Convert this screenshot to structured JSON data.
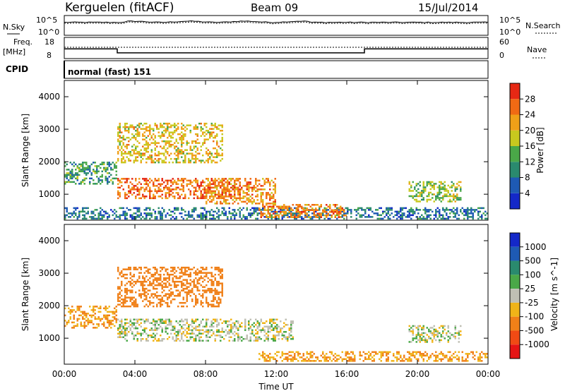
{
  "header": {
    "station": "Kerguelen (fitACF)",
    "beam": "Beam 09",
    "date": "15/Jul/2014"
  },
  "noise_panel": {
    "left_label": "N.Sky",
    "right_label": "N.Search",
    "left_ticks": [
      "10^5",
      "10^0"
    ],
    "right_ticks": [
      "10^5",
      "10^0"
    ]
  },
  "freq_panel": {
    "left_label_1": "Freq.",
    "left_label_2": "[MHz]",
    "right_label": "Nave",
    "left_ticks": [
      "18",
      "8"
    ],
    "right_ticks": [
      "60",
      "0"
    ],
    "freq_segments": [
      {
        "start_h": 0.0,
        "end_h": 3.0,
        "value": 12.6
      },
      {
        "start_h": 3.0,
        "end_h": 17.0,
        "value": 10.7
      },
      {
        "start_h": 17.0,
        "end_h": 24.0,
        "value": 12.6
      }
    ]
  },
  "cpid_panel": {
    "label": "CPID",
    "mode": "normal (fast) 151"
  },
  "axes": {
    "ylabel": "Slant Range [km]",
    "xlabel": "Time UT",
    "y_ticks": [
      "1000",
      "2000",
      "3000",
      "4000"
    ],
    "x_ticks": [
      "00:00",
      "04:00",
      "08:00",
      "12:00",
      "16:00",
      "20:00",
      "00:00"
    ]
  },
  "power_colorbar": {
    "title": "Power [dB]",
    "labels": [
      "4",
      "8",
      "12",
      "16",
      "20",
      "24",
      "28"
    ],
    "colors": [
      "#1428c8",
      "#1e5ab4",
      "#2a8a6e",
      "#4aa848",
      "#c8c81e",
      "#f0a018",
      "#f06a14",
      "#e62814"
    ]
  },
  "velocity_colorbar": {
    "title": "Velocity [m s^-1]",
    "labels": [
      "1000",
      "500",
      "100",
      "25",
      "-25",
      "-100",
      "-500",
      "-1000"
    ],
    "colors": [
      "#1428c8",
      "#1e5ab4",
      "#2a8a6e",
      "#4aa848",
      "#c0c0b4",
      "#f0b418",
      "#f08018",
      "#f04a14",
      "#e61414"
    ]
  },
  "chart_data": {
    "type": "heatmap",
    "x_range_hours": [
      0,
      24
    ],
    "y_range_km": [
      200,
      4500
    ],
    "power_regions": [
      {
        "name": "low-range clutter",
        "t0": 0,
        "t1": 24,
        "r0": 250,
        "r1": 600,
        "value_db": 8
      },
      {
        "name": "early echo band",
        "t0": 0,
        "t1": 3,
        "r0": 1300,
        "r1": 2000,
        "value_db": 12
      },
      {
        "name": "main band",
        "t0": 3,
        "t1": 10,
        "r0": 900,
        "r1": 1500,
        "value_db": 26
      },
      {
        "name": "main band late",
        "t0": 8,
        "t1": 12,
        "r0": 700,
        "r1": 1500,
        "value_db": 24
      },
      {
        "name": "upper scatter",
        "t0": 3,
        "t1": 9,
        "r0": 2000,
        "r1": 3200,
        "value_db": 20
      },
      {
        "name": "descending arc",
        "t0": 11,
        "t1": 16,
        "r0": 300,
        "r1": 700,
        "value_db": 24
      },
      {
        "name": "evening patch",
        "t0": 19.5,
        "t1": 22.5,
        "r0": 800,
        "r1": 1400,
        "value_db": 16
      }
    ],
    "velocity_regions": [
      {
        "name": "early",
        "t0": 0,
        "t1": 3,
        "r0": 1300,
        "r1": 2000,
        "value_ms": -100
      },
      {
        "name": "ground scatter band",
        "t0": 3,
        "t1": 13,
        "r0": 900,
        "r1": 1600,
        "value_ms": 0
      },
      {
        "name": "upper scatter",
        "t0": 3,
        "t1": 9,
        "r0": 2000,
        "r1": 3200,
        "value_ms": -300
      },
      {
        "name": "low-range",
        "t0": 11,
        "t1": 24,
        "r0": 300,
        "r1": 600,
        "value_ms": -100
      },
      {
        "name": "evening patch",
        "t0": 19.5,
        "t1": 22.5,
        "r0": 900,
        "r1": 1400,
        "value_ms": 0
      }
    ]
  }
}
